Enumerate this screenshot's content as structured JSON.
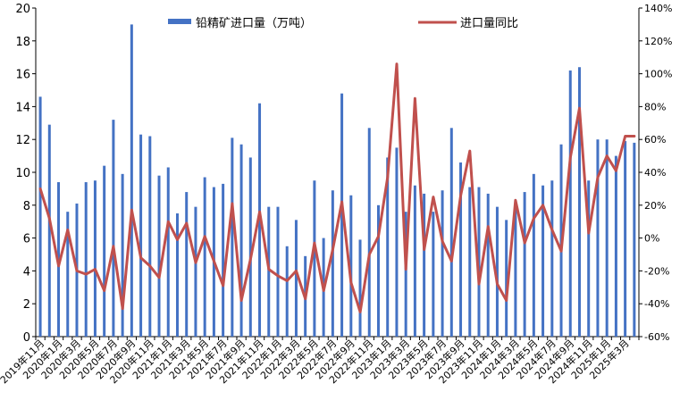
{
  "chart_data": {
    "type": "bar+line",
    "categories": [
      "2019年11月",
      "2019年12月",
      "2020年1月",
      "2020年2月",
      "2020年3月",
      "2020年4月",
      "2020年5月",
      "2020年6月",
      "2020年7月",
      "2020年8月",
      "2020年9月",
      "2020年10月",
      "2020年11月",
      "2020年12月",
      "2021年1月",
      "2021年2月",
      "2021年3月",
      "2021年4月",
      "2021年5月",
      "2021年6月",
      "2021年7月",
      "2021年8月",
      "2021年9月",
      "2021年10月",
      "2021年11月",
      "2021年12月",
      "2022年1月",
      "2022年2月",
      "2022年3月",
      "2022年4月",
      "2022年5月",
      "2022年6月",
      "2022年7月",
      "2022年8月",
      "2022年9月",
      "2022年10月",
      "2022年11月",
      "2022年12月",
      "2023年1月",
      "2023年2月",
      "2023年3月",
      "2023年4月",
      "2023年5月",
      "2023年6月",
      "2023年7月",
      "2023年8月",
      "2023年9月",
      "2023年10月",
      "2023年11月",
      "2023年12月",
      "2024年1月",
      "2024年2月",
      "2024年3月",
      "2024年4月",
      "2024年5月",
      "2024年6月",
      "2024年7月",
      "2024年8月",
      "2024年9月",
      "2024年10月",
      "2024年11月",
      "2024年12月",
      "2025年1月",
      "2025年2月",
      "2025年3月",
      "2025年4月"
    ],
    "x_tick_labels": [
      "2019年11月",
      "2020年1月",
      "2020年3月",
      "2020年5月",
      "2020年7月",
      "2020年9月",
      "2020年11月",
      "2021年1月",
      "2021年3月",
      "2021年5月",
      "2021年7月",
      "2021年9月",
      "2021年11月",
      "2022年1月",
      "2022年3月",
      "2022年5月",
      "2022年7月",
      "2022年9月",
      "2022年11月",
      "2023年1月",
      "2023年3月",
      "2023年5月",
      "2023年7月",
      "2023年9月",
      "2023年11月",
      "2024年1月",
      "2024年3月",
      "2024年5月",
      "2024年7月",
      "2024年9月",
      "2024年11月",
      "2025年1月",
      "2025年3月"
    ],
    "series": [
      {
        "name": "铅精矿进口量（万吨）",
        "kind": "bar",
        "axis": "left",
        "color": "#4472c4",
        "values": [
          14.6,
          12.9,
          9.4,
          7.6,
          8.1,
          9.4,
          9.5,
          10.4,
          13.2,
          9.9,
          19.0,
          12.3,
          12.2,
          9.8,
          10.3,
          7.5,
          8.8,
          7.9,
          9.7,
          9.1,
          9.3,
          12.1,
          11.7,
          10.9,
          14.2,
          7.9,
          7.9,
          5.5,
          7.1,
          4.9,
          9.5,
          6.0,
          8.9,
          14.8,
          8.6,
          5.9,
          12.7,
          8.0,
          10.9,
          11.5,
          7.6,
          9.2,
          8.7,
          7.6,
          8.9,
          12.7,
          10.6,
          9.1,
          9.1,
          8.7,
          7.9,
          7.1,
          8.0,
          8.8,
          9.9,
          9.2,
          9.5,
          11.7,
          16.2,
          16.4,
          9.5,
          12.0,
          12.0,
          11.0,
          11.9,
          11.8
        ]
      },
      {
        "name": "进口量同比",
        "kind": "line",
        "axis": "right",
        "color": "#c0504d",
        "values": [
          30,
          12,
          -17,
          5,
          -20,
          -22,
          -19,
          -32,
          -5,
          -43,
          17,
          -12,
          -17,
          -24,
          10,
          -1,
          9,
          -15,
          1,
          -14,
          -29,
          21,
          -38,
          -13,
          16,
          -19,
          -23,
          -26,
          -20,
          -37,
          -3,
          -32,
          -7,
          22,
          -27,
          -45,
          -10,
          1,
          37,
          106,
          -19,
          85,
          -7,
          25,
          -2,
          -14,
          26,
          53,
          -28,
          7,
          -28,
          -38,
          23,
          -3,
          12,
          20,
          5,
          -8,
          49,
          79,
          3,
          37,
          50,
          41,
          62,
          62
        ]
      }
    ],
    "y_left": {
      "min": 0,
      "max": 20,
      "ticks": [
        "0",
        "2",
        "4",
        "6",
        "8",
        "10",
        "12",
        "14",
        "16",
        "18",
        "20"
      ]
    },
    "y_right": {
      "min": -60,
      "max": 140,
      "ticks": [
        "-60%",
        "-40%",
        "-20%",
        "0%",
        "20%",
        "40%",
        "60%",
        "80%",
        "100%",
        "120%",
        "140%"
      ]
    },
    "legend_position": "top",
    "grid": false
  }
}
